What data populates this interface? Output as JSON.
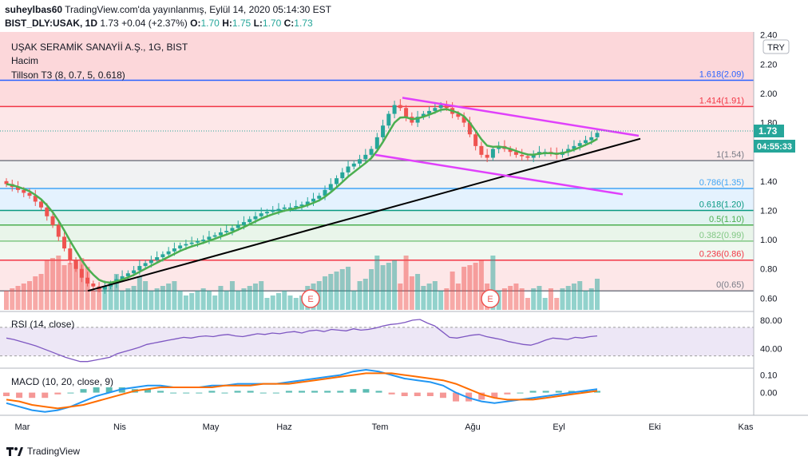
{
  "header": {
    "author": "suheylbas60",
    "published": "TradingView.com'da yayınlanmış, Eylül 14, 2020 05:14:30 EST",
    "symbol": "BIST_DLY:USAK, 1D",
    "last": "1.73",
    "change": "+0.04 (+2.37%)",
    "o_label": "O:",
    "o": "1.70",
    "h_label": "H:",
    "h": "1.75",
    "l_label": "L:",
    "l": "1.70",
    "c_label": "C:",
    "c": "1.73"
  },
  "legend": {
    "title": "UŞAK SERAMİK SANAYİİ A.Ş., 1G, BIST",
    "volume": "Hacim",
    "tillson": "Tillson T3 (8, 0.7, 5, 0.618)",
    "currency": "TRY",
    "price_badge": "1.73",
    "time_badge": "04:55:33",
    "rsi": "RSI (14, close)",
    "macd": "MACD (10, 20, close, 9)"
  },
  "footer": {
    "brand": "TradingView"
  },
  "colors": {
    "up": "#26a69a",
    "down": "#ef5350",
    "tillson_up": "#4caf50",
    "tillson_down": "#f44336",
    "channel": "#e040fb",
    "trend": "#000000",
    "rsi": "#7e57c2",
    "macd": "#2196f3",
    "signal": "#ff6d00"
  },
  "chart_data": [
    {
      "type": "candlestick",
      "title": "UŞAK SERAMİK SANAYİİ A.Ş., 1G, BIST",
      "y_axis_labels": [
        "2.40",
        "2.20",
        "2.00",
        "1.80",
        "1.40",
        "1.20",
        "1.00",
        "0.80",
        "0.60"
      ],
      "ylim": [
        0.52,
        2.42
      ],
      "x_axis_labels": [
        "Mar",
        "Nis",
        "May",
        "Haz",
        "Tem",
        "Ağu",
        "Eyl",
        "Eki",
        "Kas"
      ],
      "fib_levels": [
        {
          "label": "1.618(2.09)",
          "value": 2.09,
          "color": "#2962ff"
        },
        {
          "label": "1.414(1.91)",
          "value": 1.91,
          "color": "#f23645"
        },
        {
          "label": "1(1.54)",
          "value": 1.54,
          "color": "#787b86"
        },
        {
          "label": "0.786(1.35)",
          "value": 1.35,
          "color": "#42a5f5"
        },
        {
          "label": "0.618(1.20)",
          "value": 1.2,
          "color": "#089981"
        },
        {
          "label": "0.5(1.10)",
          "value": 1.1,
          "color": "#4caf50"
        },
        {
          "label": "0.382(0.99)",
          "value": 0.99,
          "color": "#81c784"
        },
        {
          "label": "0.236(0.86)",
          "value": 0.86,
          "color": "#f23645"
        },
        {
          "label": "0(0.65)",
          "value": 0.65,
          "color": "#787b86"
        }
      ],
      "close_series": [
        1.38,
        1.36,
        1.34,
        1.32,
        1.3,
        1.26,
        1.22,
        1.16,
        1.1,
        1.02,
        0.94,
        0.86,
        0.8,
        0.74,
        0.7,
        0.68,
        0.66,
        0.68,
        0.7,
        0.73,
        0.75,
        0.77,
        0.79,
        0.82,
        0.84,
        0.86,
        0.88,
        0.9,
        0.92,
        0.94,
        0.96,
        0.97,
        0.98,
        0.99,
        1.0,
        1.02,
        1.03,
        1.05,
        1.06,
        1.08,
        1.1,
        1.12,
        1.14,
        1.16,
        1.18,
        1.19,
        1.2,
        1.21,
        1.22,
        1.22,
        1.23,
        1.24,
        1.26,
        1.28,
        1.3,
        1.34,
        1.38,
        1.42,
        1.46,
        1.5,
        1.52,
        1.55,
        1.58,
        1.62,
        1.7,
        1.78,
        1.86,
        1.92,
        1.9,
        1.84,
        1.8,
        1.84,
        1.86,
        1.88,
        1.9,
        1.92,
        1.9,
        1.86,
        1.84,
        1.8,
        1.72,
        1.64,
        1.58,
        1.56,
        1.62,
        1.64,
        1.62,
        1.6,
        1.58,
        1.57,
        1.56,
        1.58,
        1.6,
        1.6,
        1.59,
        1.58,
        1.6,
        1.62,
        1.64,
        1.66,
        1.68,
        1.7,
        1.73
      ],
      "drawings": {
        "channel_top": [
          [
            1.97,
            0
          ],
          [
            1.71,
            1
          ]
        ],
        "channel_bottom": [
          [
            1.58,
            0
          ],
          [
            1.31,
            1
          ]
        ],
        "trendline": [
          [
            0.65,
            0
          ],
          [
            1.69,
            1
          ]
        ]
      },
      "annotations": [
        "E",
        "E"
      ]
    },
    {
      "type": "line",
      "title": "RSI (14, close)",
      "y_axis_labels": [
        "80.00",
        "40.00"
      ],
      "ylim": [
        15,
        90
      ],
      "bands": [
        70,
        30
      ],
      "values": [
        55,
        53,
        50,
        47,
        44,
        40,
        36,
        32,
        28,
        25,
        22,
        22,
        24,
        26,
        28,
        33,
        36,
        39,
        42,
        46,
        48,
        50,
        52,
        54,
        56,
        55,
        57,
        58,
        57,
        59,
        60,
        58,
        57,
        59,
        61,
        60,
        62,
        61,
        63,
        64,
        62,
        65,
        66,
        64,
        67,
        66,
        65,
        68,
        66,
        67,
        69,
        72,
        74,
        75,
        77,
        80,
        81,
        76,
        72,
        64,
        56,
        55,
        57,
        59,
        60,
        57,
        55,
        53,
        50,
        48,
        46,
        45,
        48,
        52,
        55,
        54,
        53,
        56,
        55,
        57,
        58
      ]
    },
    {
      "type": "histogram+line",
      "title": "MACD (10, 20, close, 9)",
      "y_axis_labels": [
        "0.10",
        "0.00"
      ],
      "ylim": [
        -0.12,
        0.13
      ],
      "macd": [
        -0.06,
        -0.08,
        -0.1,
        -0.11,
        -0.1,
        -0.08,
        -0.05,
        -0.02,
        0.0,
        0.02,
        0.03,
        0.04,
        0.04,
        0.03,
        0.03,
        0.03,
        0.04,
        0.04,
        0.05,
        0.05,
        0.05,
        0.05,
        0.06,
        0.07,
        0.08,
        0.09,
        0.1,
        0.12,
        0.13,
        0.12,
        0.1,
        0.08,
        0.07,
        0.06,
        0.04,
        0.0,
        -0.03,
        -0.05,
        -0.06,
        -0.05,
        -0.04,
        -0.03,
        -0.02,
        -0.01,
        0.0,
        0.01,
        0.02
      ],
      "signal": [
        -0.04,
        -0.05,
        -0.07,
        -0.08,
        -0.09,
        -0.08,
        -0.07,
        -0.05,
        -0.03,
        -0.01,
        0.01,
        0.02,
        0.03,
        0.03,
        0.03,
        0.03,
        0.03,
        0.04,
        0.04,
        0.04,
        0.05,
        0.05,
        0.05,
        0.06,
        0.07,
        0.08,
        0.09,
        0.1,
        0.11,
        0.11,
        0.11,
        0.1,
        0.09,
        0.08,
        0.07,
        0.05,
        0.02,
        -0.01,
        -0.03,
        -0.04,
        -0.04,
        -0.04,
        -0.03,
        -0.02,
        -0.01,
        0.0,
        0.01
      ]
    }
  ]
}
